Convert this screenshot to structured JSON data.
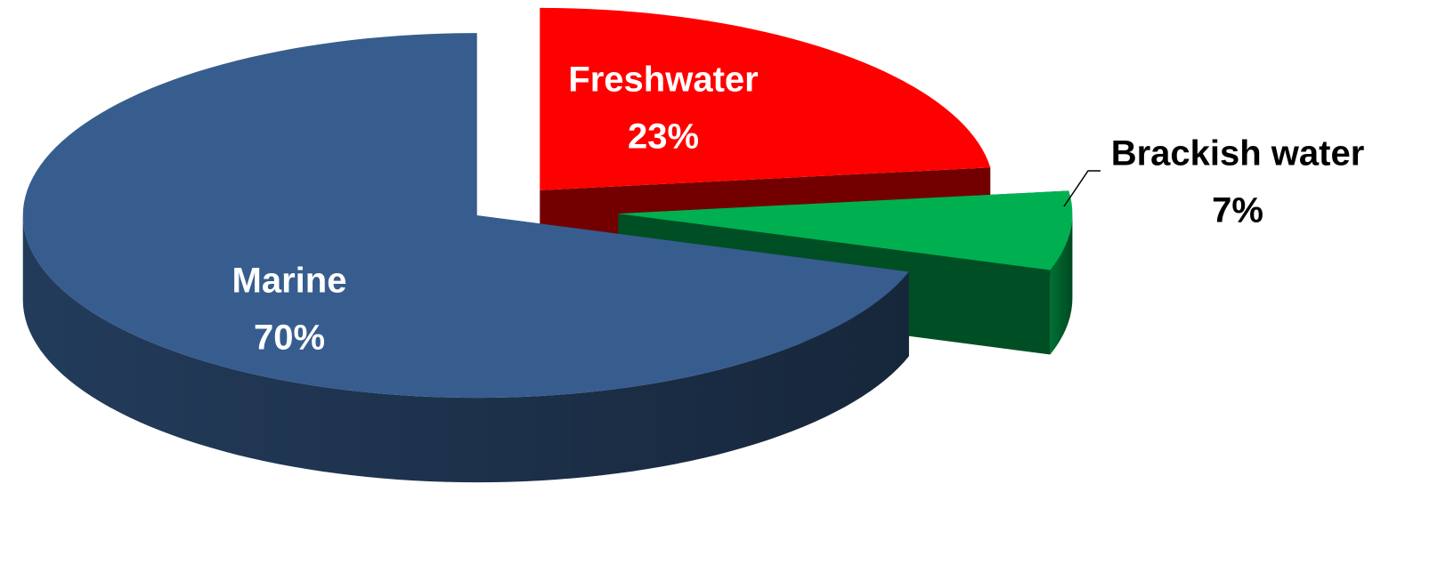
{
  "chart_data": {
    "type": "pie",
    "categories": [
      "Freshwater",
      "Brackish water",
      "Marine"
    ],
    "values": [
      23,
      7,
      70
    ],
    "value_labels": [
      "23%",
      "7%",
      "70%"
    ],
    "colors": [
      "#ff0000",
      "#00b050",
      "#375d8f"
    ]
  }
}
